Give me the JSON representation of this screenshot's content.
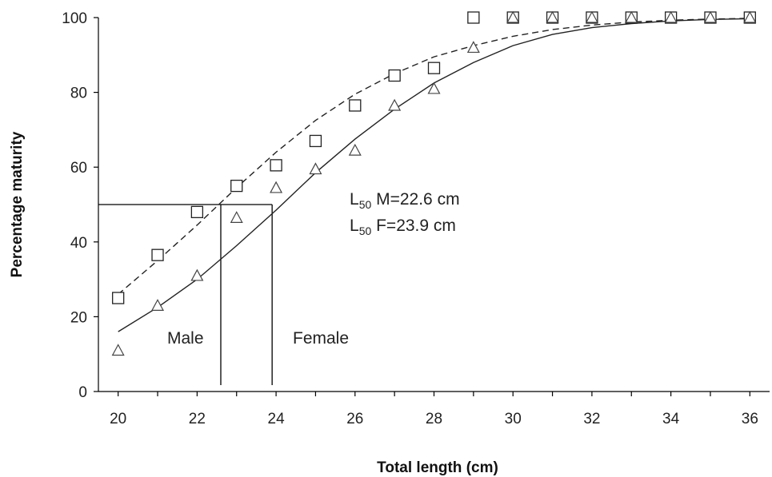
{
  "chart_data": {
    "type": "scatter",
    "xlabel": "Total length (cm)",
    "ylabel": "Percentage maturity",
    "xlim": [
      19.5,
      36.5
    ],
    "ylim": [
      0,
      100
    ],
    "x_ticks": [
      20,
      22,
      24,
      26,
      28,
      30,
      32,
      34,
      36
    ],
    "y_ticks": [
      0,
      20,
      40,
      60,
      80,
      100
    ],
    "grid": false,
    "series": [
      {
        "marker": "square",
        "x": [
          20,
          21,
          22,
          23,
          24,
          25,
          26,
          27,
          28,
          29,
          30,
          31,
          32,
          33,
          34,
          35,
          36
        ],
        "y": [
          25,
          36.5,
          48,
          55,
          60.5,
          67,
          76.5,
          84.5,
          86.5,
          100,
          100,
          100,
          100,
          100,
          100,
          100,
          100
        ],
        "fit": {
          "style": "dashed",
          "x": [
            20,
            21,
            22,
            23,
            24,
            25,
            26,
            27,
            28,
            29,
            30,
            31,
            32,
            33,
            34,
            35,
            36
          ],
          "y": [
            26,
            35,
            44.5,
            54.5,
            64,
            72.5,
            79.5,
            85,
            89.5,
            92.5,
            95,
            96.8,
            98,
            98.8,
            99.3,
            99.6,
            99.8
          ]
        }
      },
      {
        "marker": "triangle",
        "x": [
          20,
          21,
          22,
          23,
          24,
          25,
          26,
          27,
          28,
          29,
          30,
          31,
          32,
          33,
          34,
          35,
          36
        ],
        "y": [
          11,
          23,
          31,
          46.5,
          54.5,
          59.5,
          64.5,
          76.5,
          81,
          92,
          100,
          100,
          100,
          100,
          100,
          100,
          100
        ],
        "fit": {
          "style": "solid",
          "x": [
            20,
            21,
            22,
            23,
            24,
            25,
            26,
            27,
            28,
            29,
            30,
            31,
            32,
            33,
            34,
            35,
            36
          ],
          "y": [
            16,
            22.5,
            30,
            39,
            48.5,
            58.5,
            67.5,
            75.5,
            82.5,
            88,
            92.5,
            95.5,
            97.3,
            98.4,
            99.1,
            99.5,
            99.7
          ]
        }
      }
    ],
    "reference_lines": {
      "y": 50,
      "x_male": 22.6,
      "x_female": 23.9
    },
    "annotations": {
      "l50_male_prefix": "L",
      "l50_male_sub": "50",
      "l50_male_text": " M=22.6 cm",
      "l50_female_prefix": "L",
      "l50_female_sub": "50",
      "l50_female_text": " F=23.9 cm",
      "male_label": "Male",
      "female_label": "Female"
    }
  }
}
